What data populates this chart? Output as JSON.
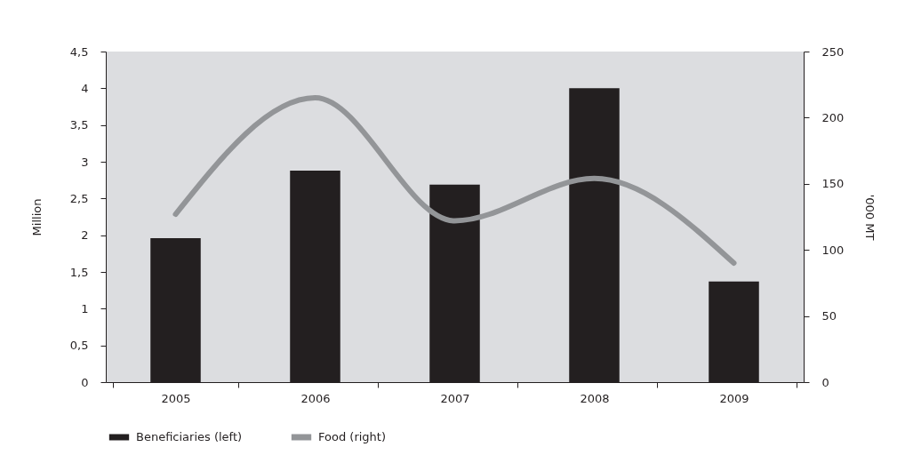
{
  "chart_data": {
    "type": "bar",
    "categories": [
      "2005",
      "2006",
      "2007",
      "2008",
      "2009"
    ],
    "series": [
      {
        "name": "Beneficiaries (left)",
        "color": "#231f20",
        "values": [
          1.96,
          2.88,
          2.69,
          4.0,
          1.37
        ]
      },
      {
        "name": "Food (right)",
        "type": "line",
        "axis": "y2",
        "color": "#939598",
        "values": [
          127,
          215,
          122,
          154,
          90
        ]
      }
    ],
    "ylabel": "Million",
    "y2label": "'000 MT",
    "ylim": [
      0,
      4.5
    ],
    "yticks": [
      0,
      {
        "value": 0.5,
        "label": "0,5"
      },
      1,
      {
        "value": 1.5,
        "label": "1,5"
      },
      2,
      {
        "value": 2.5,
        "label": "2,5"
      },
      3,
      {
        "value": 3.5,
        "label": "3,5"
      },
      4,
      {
        "value": 4.5,
        "label": "4,5"
      }
    ],
    "y2lim": [
      0,
      250
    ],
    "y2ticks": [
      0,
      50,
      100,
      150,
      200,
      250
    ],
    "legend": "bottom",
    "marker": "none",
    "line_style": "solid"
  }
}
